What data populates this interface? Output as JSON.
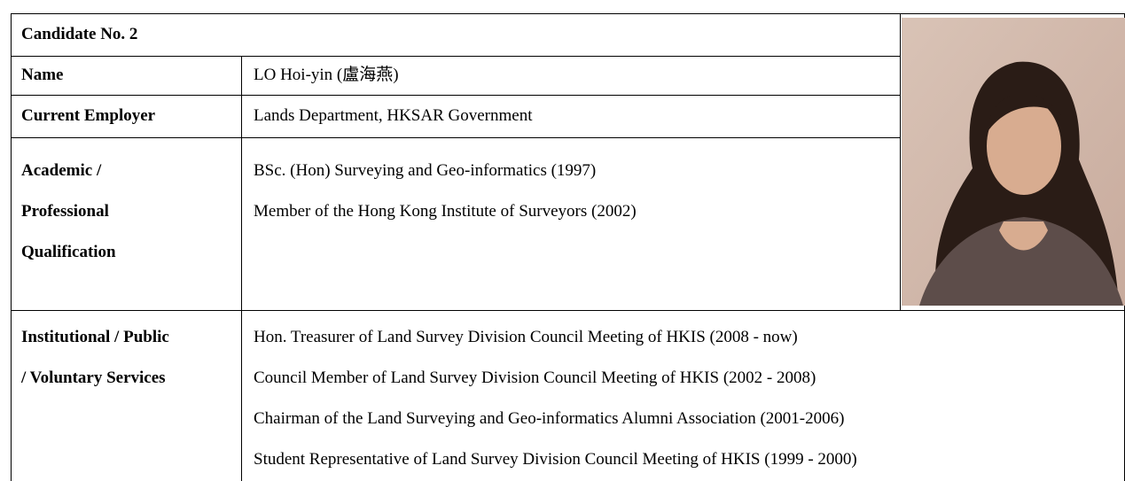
{
  "header": {
    "title": "Candidate No. 2"
  },
  "rows": [
    {
      "label": [
        "Name"
      ],
      "lines": [
        "LO Hoi-yin (盧海燕)"
      ]
    },
    {
      "label": [
        "Current Employer"
      ],
      "lines": [
        "Lands Department, HKSAR Government"
      ]
    },
    {
      "label": [
        "Academic /",
        "Professional",
        "Qualification"
      ],
      "lines": [
        "BSc. (Hon) Surveying and Geo-informatics (1997)",
        "Member of the Hong Kong Institute of Surveyors (2002)"
      ]
    },
    {
      "label": [
        "Institutional / Public",
        "/ Voluntary Services"
      ],
      "lines": [
        "Hon. Treasurer of Land Survey Division Council Meeting of HKIS (2008 - now)",
        "Council Member of Land Survey Division Council Meeting of HKIS (2002 - 2008)",
        "Chairman of the Land Surveying and Geo-informatics Alumni Association (2001-2006)",
        "Student Representative of Land Survey Division Council Meeting of HKIS (1999 - 2000)"
      ]
    }
  ]
}
